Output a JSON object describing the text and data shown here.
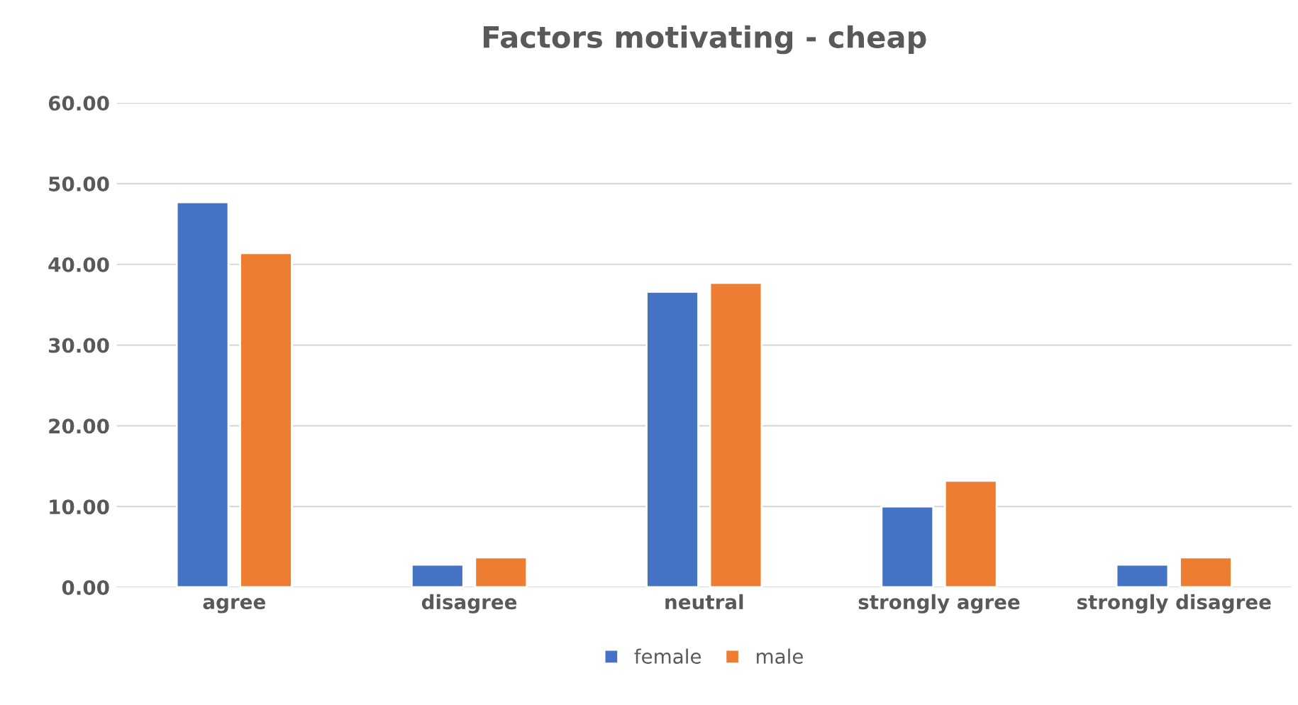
{
  "chart_data": {
    "type": "bar",
    "title": "Factors motivating - cheap",
    "categories": [
      "agree",
      "disagree",
      "neutral",
      "strongly agree",
      "strongly disagree"
    ],
    "series": [
      {
        "name": "female",
        "color": "#4472c4",
        "values": [
          47.7,
          2.8,
          36.6,
          10.0,
          2.8
        ]
      },
      {
        "name": "male",
        "color": "#ed7d31",
        "values": [
          41.4,
          3.7,
          37.7,
          13.2,
          3.7
        ]
      }
    ],
    "ylim": [
      0,
      60
    ],
    "yticks": [
      {
        "value": 0,
        "label": "0.00"
      },
      {
        "value": 10,
        "label": "10.00"
      },
      {
        "value": 20,
        "label": "20.00"
      },
      {
        "value": 30,
        "label": "30.00"
      },
      {
        "value": 40,
        "label": "40.00"
      },
      {
        "value": 50,
        "label": "50.00"
      },
      {
        "value": 60,
        "label": "60.00"
      }
    ],
    "grid": "y",
    "legend": "bottom"
  }
}
